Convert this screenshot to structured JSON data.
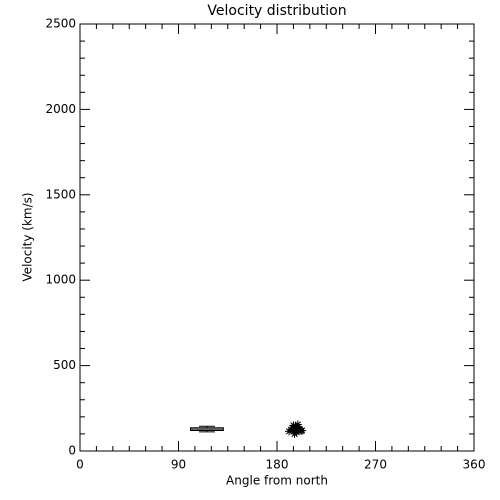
{
  "chart_data": {
    "type": "scatter",
    "title": "Velocity distribution",
    "x_label": "Angle from north",
    "y_label": "Velocity (km/s)",
    "x": [
      191,
      193,
      194,
      195,
      196,
      197,
      198,
      199,
      200,
      201,
      202,
      203,
      196,
      199
    ],
    "values": [
      115,
      125,
      135,
      150,
      120,
      145,
      110,
      140,
      130,
      125,
      118,
      120,
      100,
      155
    ],
    "color": "#000000",
    "box": {
      "x_range": [
        101,
        131
      ],
      "whisker_low": 112,
      "q1": 120,
      "median": 128,
      "q3": 136,
      "whisker_high": 145
    },
    "xlim": [
      0,
      360
    ],
    "xticks": [
      0,
      90,
      180,
      270,
      360
    ],
    "xminorticks": [
      15,
      30,
      45,
      60,
      75,
      105,
      120,
      135,
      150,
      165,
      195,
      210,
      225,
      240,
      255,
      285,
      300,
      315,
      330,
      345
    ],
    "ylim": [
      0,
      2500
    ],
    "yticks": [
      0,
      500,
      1000,
      1500,
      2000,
      2500
    ],
    "yminorticks": [
      100,
      200,
      300,
      400,
      600,
      700,
      800,
      900,
      1100,
      1200,
      1300,
      1400,
      1600,
      1700,
      1800,
      1900,
      2100,
      2200,
      2300,
      2400
    ],
    "grid": false
  }
}
